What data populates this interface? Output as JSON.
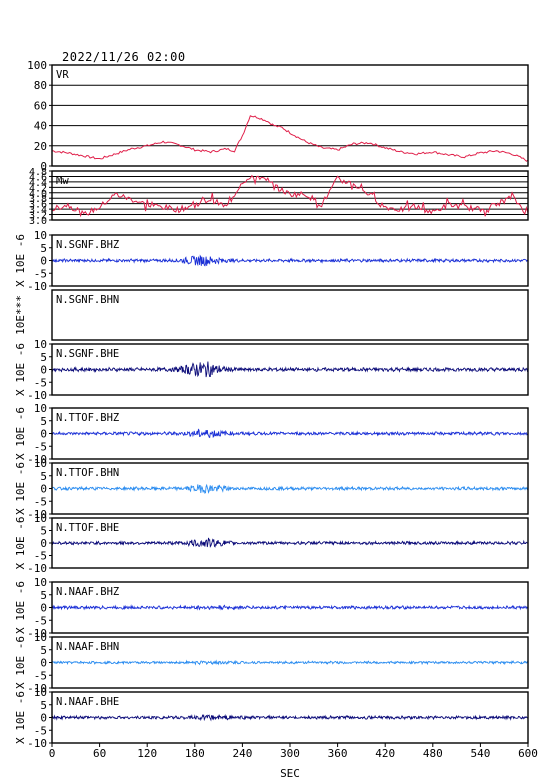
{
  "header": {
    "datetime": "2022/11/26 02:00"
  },
  "chart_data": {
    "type": "line",
    "xlabel": "SEC",
    "x_ticks": [
      0,
      60,
      120,
      180,
      240,
      300,
      360,
      420,
      480,
      540,
      600
    ],
    "xlim": [
      0,
      600
    ],
    "colors": {
      "vr": "#e0204a",
      "mw": "#e0204a",
      "blue": "#1a2fd6",
      "navy": "#0a0a78",
      "light": "#2a8cf0"
    },
    "panels": [
      {
        "id": "vr",
        "label": "VR",
        "kind": "vr",
        "ylim": [
          0,
          100
        ],
        "ytick_labels": [
          "100",
          "80",
          "60",
          "40",
          "20",
          "0"
        ],
        "grid": true,
        "series": {
          "x": [
            0,
            20,
            40,
            60,
            80,
            100,
            120,
            140,
            160,
            180,
            200,
            220,
            230,
            240,
            250,
            260,
            270,
            280,
            290,
            300,
            320,
            340,
            360,
            380,
            400,
            420,
            440,
            460,
            480,
            500,
            520,
            540,
            560,
            580,
            600
          ],
          "y": [
            15,
            13,
            10,
            7,
            12,
            17,
            20,
            24,
            21,
            16,
            14,
            17,
            15,
            30,
            50,
            48,
            45,
            40,
            38,
            33,
            24,
            18,
            16,
            22,
            23,
            18,
            14,
            12,
            14,
            11,
            9,
            13,
            15,
            12,
            5
          ]
        }
      },
      {
        "id": "mw",
        "label": "Mw",
        "kind": "mw",
        "ylim": [
          2.9,
          4.8
        ],
        "ytick_labels": [
          "4.8",
          "4.6",
          "4.4",
          "4.2",
          "4.0",
          "3.8",
          "3.6",
          "3.4",
          "3.2",
          "3.0"
        ],
        "grid": true,
        "series": {
          "x": [
            0,
            20,
            40,
            60,
            80,
            100,
            120,
            140,
            160,
            180,
            200,
            220,
            240,
            260,
            280,
            300,
            320,
            340,
            360,
            380,
            400,
            420,
            440,
            460,
            480,
            500,
            520,
            540,
            560,
            580,
            600
          ],
          "y": [
            3.3,
            3.5,
            3.1,
            3.4,
            3.9,
            3.7,
            3.5,
            3.4,
            3.3,
            3.5,
            3.7,
            3.4,
            4.4,
            4.6,
            4.2,
            3.9,
            3.9,
            3.5,
            4.5,
            4.3,
            3.9,
            3.4,
            3.3,
            3.4,
            3.2,
            3.5,
            3.4,
            3.3,
            3.5,
            3.8,
            3.1
          ]
        }
      },
      {
        "id": "sgnf-bhz",
        "label": "N.SGNF.BHZ",
        "kind": "wave",
        "ylim": [
          -10,
          10
        ],
        "ytick_labels": [
          "10",
          "5",
          "0",
          "-5",
          "-10"
        ],
        "ylabel": "X 10E -6",
        "color_key": "blue",
        "noise": 0.5,
        "burst": {
          "center": 190,
          "width": 30,
          "amp": 1.6
        }
      },
      {
        "id": "sgnf-bhn",
        "label": "N.SGNF.BHN",
        "kind": "empty",
        "ylabel": "10E***"
      },
      {
        "id": "sgnf-bhe",
        "label": "N.SGNF.BHE",
        "kind": "wave",
        "ylim": [
          -10,
          10
        ],
        "ytick_labels": [
          "10",
          "5",
          "0",
          "-5",
          "-10"
        ],
        "ylabel": "X 10E -6",
        "color_key": "navy",
        "noise": 0.6,
        "burst": {
          "center": 190,
          "width": 30,
          "amp": 2.6
        }
      },
      {
        "id": "ttof-bhz",
        "label": "N.TTOF.BHZ",
        "kind": "wave",
        "ylim": [
          -10,
          10
        ],
        "ytick_labels": [
          "10",
          "5",
          "0",
          "-5",
          "-10"
        ],
        "ylabel": "X 10E -6",
        "color_key": "blue",
        "noise": 0.5,
        "burst": {
          "center": 195,
          "width": 30,
          "amp": 1.3
        }
      },
      {
        "id": "ttof-bhn",
        "label": "N.TTOF.BHN",
        "kind": "wave",
        "ylim": [
          -10,
          10
        ],
        "ytick_labels": [
          "10",
          "5",
          "0",
          "-5",
          "-10"
        ],
        "ylabel": "X 10E -6",
        "color_key": "light",
        "noise": 0.5,
        "burst": {
          "center": 195,
          "width": 30,
          "amp": 1.3
        }
      },
      {
        "id": "ttof-bhe",
        "label": "N.TTOF.BHE",
        "kind": "wave",
        "ylim": [
          -10,
          10
        ],
        "ytick_labels": [
          "10",
          "5",
          "0",
          "-5",
          "-10"
        ],
        "ylabel": "X 10E -6",
        "color_key": "navy",
        "noise": 0.5,
        "burst": {
          "center": 195,
          "width": 30,
          "amp": 1.4
        }
      },
      {
        "id": "naaf-bhz",
        "label": "N.NAAF.BHZ",
        "kind": "wave",
        "ylim": [
          -10,
          10
        ],
        "ytick_labels": [
          "10",
          "5",
          "0",
          "-5",
          "-10"
        ],
        "ylabel": "X 10E -6",
        "color_key": "blue",
        "noise": 0.5,
        "burst": {
          "center": 200,
          "width": 40,
          "amp": 0.3
        }
      },
      {
        "id": "naaf-bhn",
        "label": "N.NAAF.BHN",
        "kind": "wave",
        "ylim": [
          -10,
          10
        ],
        "ytick_labels": [
          "10",
          "5",
          "0",
          "-5",
          "-10"
        ],
        "ylabel": "X 10E -6",
        "color_key": "light",
        "noise": 0.4,
        "burst": {
          "center": 200,
          "width": 40,
          "amp": 0.3
        }
      },
      {
        "id": "naaf-bhe",
        "label": "N.NAAF.BHE",
        "kind": "wave",
        "ylim": [
          -10,
          10
        ],
        "ytick_labels": [
          "10",
          "5",
          "0",
          "-5",
          "-10"
        ],
        "ylabel": "X 10E -6",
        "color_key": "navy",
        "noise": 0.5,
        "burst": {
          "center": 200,
          "width": 40,
          "amp": 0.4
        }
      }
    ]
  }
}
